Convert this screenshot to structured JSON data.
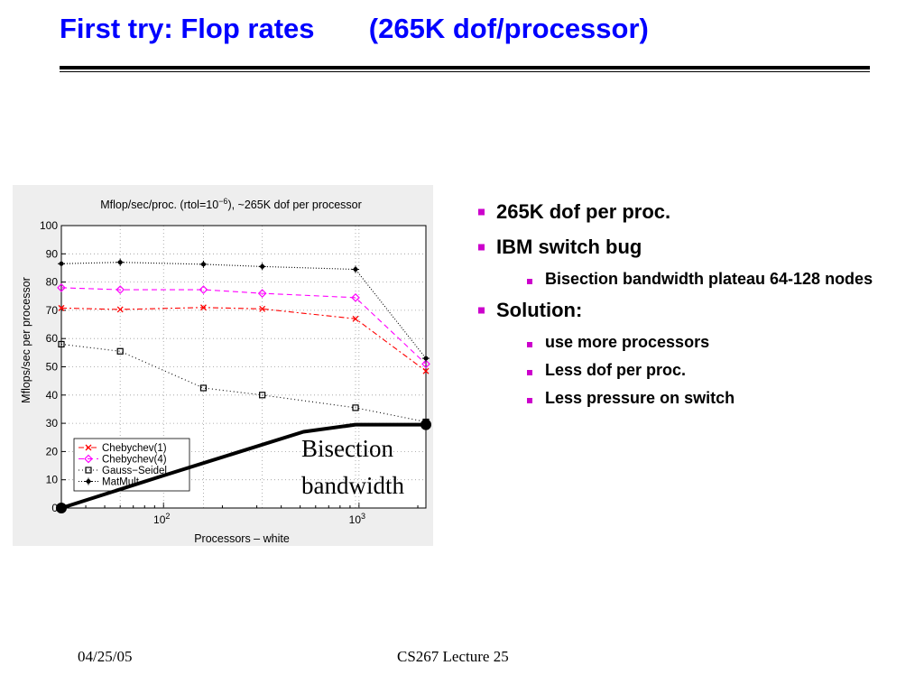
{
  "slide": {
    "title": "First try: Flop rates       (265K dof/processor)",
    "footer_date": "04/25/05",
    "footer_course": "CS267 Lecture 25",
    "title_color": "#0000ff",
    "bullet_color": "#cc00cc"
  },
  "bullets": [
    {
      "label": "265K dof per proc.",
      "sub": []
    },
    {
      "label": "IBM switch bug",
      "sub": [
        "Bisection bandwidth plateau 64-128 nodes"
      ]
    },
    {
      "label": "Solution:",
      "sub": [
        "use more processors",
        "Less dof per proc.",
        "Less pressure on switch"
      ]
    }
  ],
  "chart_data": {
    "type": "line",
    "title": "Mflop/sec/proc. (rtol=10^-6), ~265K dof per processor",
    "title_prefix": "Mflop/sec/proc. (rtol=10",
    "title_exp": "−6",
    "title_suffix": "), ~265K dof per processor",
    "xlabel": "Processors – white",
    "ylabel": "Mflops/sec per processor",
    "xscale": "log",
    "xlim": [
      30,
      2200
    ],
    "ylim": [
      0,
      100
    ],
    "yticks": [
      0,
      10,
      20,
      30,
      40,
      50,
      60,
      70,
      80,
      90,
      100
    ],
    "xticks": [
      {
        "value": 100,
        "base": "10",
        "exp": "2"
      },
      {
        "value": 1000,
        "base": "10",
        "exp": "3"
      }
    ],
    "grid": true,
    "legend_position": "bottom-left",
    "series": [
      {
        "name": "Chebychev(1)",
        "color": "#ff0000",
        "marker": "x",
        "dash": "6,3,2,3",
        "x": [
          30,
          60,
          160,
          320,
          960,
          2200
        ],
        "y": [
          70.8,
          70.3,
          71,
          70.5,
          67,
          48.5
        ]
      },
      {
        "name": "Chebychev(4)",
        "color": "#ff00ff",
        "marker": "diamond",
        "dash": "6,4",
        "x": [
          30,
          60,
          160,
          320,
          960,
          2200
        ],
        "y": [
          78,
          77.3,
          77.3,
          76,
          74.5,
          51
        ]
      },
      {
        "name": "Gauss−Seidel",
        "color": "#000000",
        "marker": "square",
        "dash": "1,3",
        "x": [
          30,
          60,
          160,
          320,
          960,
          2200
        ],
        "y": [
          58,
          55.5,
          42.5,
          40,
          35.5,
          30.5
        ]
      },
      {
        "name": "MatMult",
        "color": "#000000",
        "marker": "star",
        "dash": "1,2",
        "x": [
          30,
          60,
          160,
          320,
          960,
          2200
        ],
        "y": [
          86.5,
          87,
          86.3,
          85.5,
          84.5,
          53
        ]
      }
    ],
    "annotation": {
      "label_line1": "Bisection",
      "label_line2": "bandwidth",
      "x": [
        30,
        100,
        520,
        960,
        2200
      ],
      "y": [
        0,
        11.5,
        27,
        29.5,
        29.5
      ]
    }
  }
}
